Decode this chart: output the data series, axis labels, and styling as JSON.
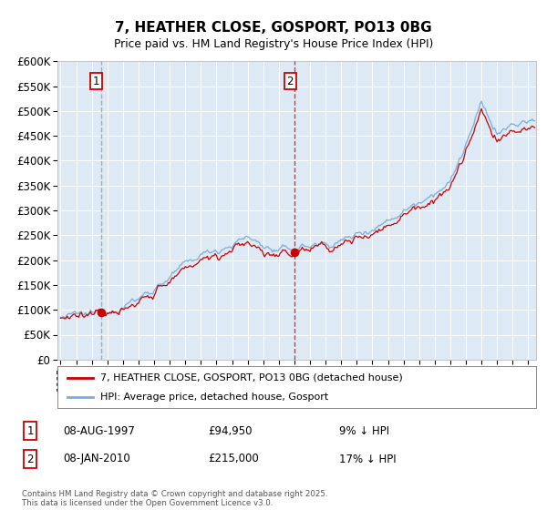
{
  "title": "7, HEATHER CLOSE, GOSPORT, PO13 0BG",
  "subtitle": "Price paid vs. HM Land Registry's House Price Index (HPI)",
  "legend_line1": "7, HEATHER CLOSE, GOSPORT, PO13 0BG (detached house)",
  "legend_line2": "HPI: Average price, detached house, Gosport",
  "footer": "Contains HM Land Registry data © Crown copyright and database right 2025.\nThis data is licensed under the Open Government Licence v3.0.",
  "sale1_date": "08-AUG-1997",
  "sale1_price": 94950,
  "sale1_info": "9% ↓ HPI",
  "sale2_date": "08-JAN-2010",
  "sale2_price": 215000,
  "sale2_info": "17% ↓ HPI",
  "sale1_year": 1997.6,
  "sale2_year": 2010.03,
  "hpi_color": "#7aaddb",
  "price_color": "#cc0000",
  "vline1_color": "#aaaaaa",
  "vline2_color": "#dd3333",
  "dot_color": "#cc0000",
  "bg_color": "#ddeaf5",
  "grid_color": "#ffffff",
  "ylim": [
    0,
    600000
  ],
  "xlim_start": 1994.8,
  "xlim_end": 2025.5,
  "ytick_interval": 50000
}
